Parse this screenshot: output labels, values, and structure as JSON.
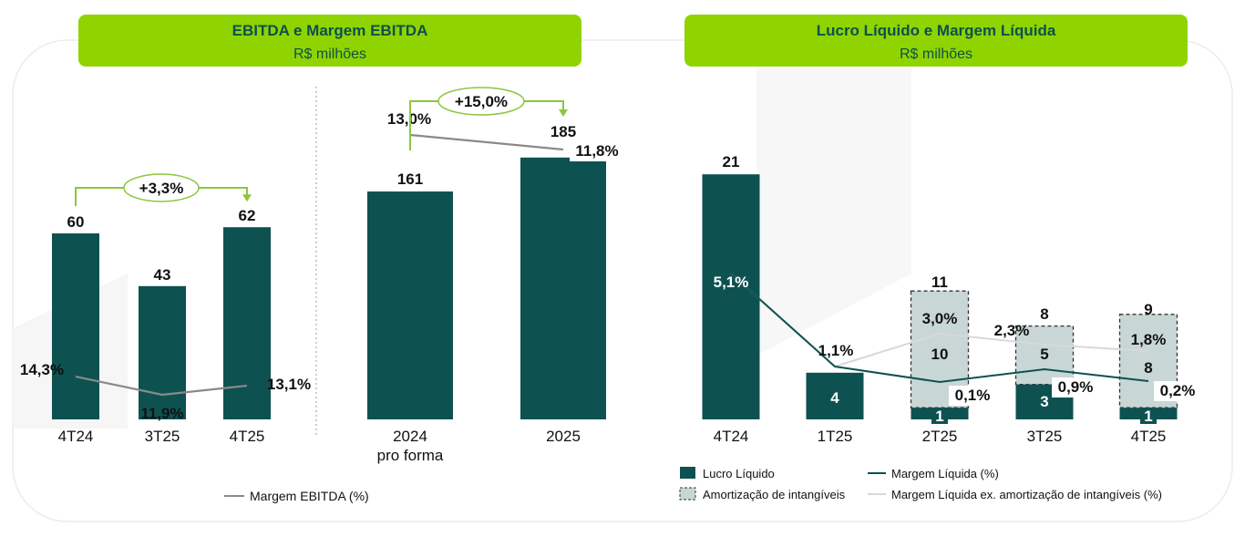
{
  "colors": {
    "bar": "#0e5151",
    "header_bg": "#8fd400",
    "header_text": "#0e4f4f",
    "arrow": "#8cc63f",
    "margin_line": "#8a8a8a",
    "amort_fill": "#c9d6d6",
    "light_line": "#d8d8d8",
    "text": "#111111",
    "white": "#ffffff"
  },
  "left_panel": {
    "title": "EBITDA e Margem EBITDA",
    "subtitle": "R$ milhões",
    "legend_label": "Margem EBITDA (%)"
  },
  "right_panel": {
    "title": "Lucro Líquido e Margem Líquida",
    "subtitle": "R$ milhões",
    "legend": {
      "lucro": "Lucro Líquido",
      "amort": "Amortização de intangíveis",
      "margem": "Margem Líquida (%)",
      "margem_ex": "Margem Líquida ex. amortização de intangíveis (%)"
    }
  },
  "chart_data": [
    {
      "type": "bar",
      "title": "EBITDA e Margem EBITDA",
      "subtitle": "R$ milhões",
      "categories": [
        "4T24",
        "3T25",
        "4T25"
      ],
      "series": [
        {
          "name": "EBITDA",
          "values": [
            60,
            43,
            62
          ]
        },
        {
          "name": "Margem EBITDA (%)",
          "values": [
            14.3,
            11.9,
            13.1
          ]
        }
      ],
      "value_labels": [
        "60",
        "43",
        "62"
      ],
      "margin_labels": [
        "14,3%",
        "11,9%",
        "13,1%"
      ],
      "growth_annotation": "+3,3%"
    },
    {
      "type": "bar",
      "title": "EBITDA e Margem EBITDA",
      "subtitle": "R$ milhões",
      "categories": [
        "2024 pro forma",
        "2025"
      ],
      "category_lines": [
        [
          "2024",
          "pro forma"
        ],
        [
          "2025"
        ]
      ],
      "series": [
        {
          "name": "EBITDA",
          "values": [
            161,
            185
          ]
        },
        {
          "name": "Margem EBITDA (%)",
          "values": [
            13.0,
            11.8
          ]
        }
      ],
      "value_labels": [
        "161",
        "185"
      ],
      "margin_labels": [
        "13,0%",
        "11,8%"
      ],
      "growth_annotation": "+15,0%"
    },
    {
      "type": "bar",
      "title": "Lucro Líquido e Margem Líquida",
      "subtitle": "R$ milhões",
      "categories": [
        "4T24",
        "1T25",
        "2T25",
        "3T25",
        "4T25"
      ],
      "series": [
        {
          "name": "Lucro Líquido",
          "values": [
            21,
            4,
            1,
            3,
            1
          ]
        },
        {
          "name": "Amortização de intangíveis",
          "values": [
            0,
            0,
            10,
            5,
            8
          ]
        },
        {
          "name": "Margem Líquida (%)",
          "values": [
            5.1,
            1.1,
            0.1,
            0.9,
            0.2
          ]
        },
        {
          "name": "Margem Líquida ex. amortização de intangíveis (%)",
          "values": [
            5.1,
            1.1,
            3.0,
            2.3,
            1.8
          ]
        }
      ],
      "lucro_labels": [
        "21",
        "4",
        "1",
        "3",
        "1"
      ],
      "amort_labels": [
        "",
        "",
        "10",
        "5",
        "8"
      ],
      "total_labels": [
        "",
        "",
        "11",
        "8",
        "9"
      ],
      "margin_labels": [
        "5,1%",
        "1,1%",
        "0,1%",
        "0,9%",
        "0,2%"
      ],
      "margin_ex_labels": [
        "",
        "",
        "3,0%",
        "2,3%",
        "1,8%"
      ]
    }
  ]
}
